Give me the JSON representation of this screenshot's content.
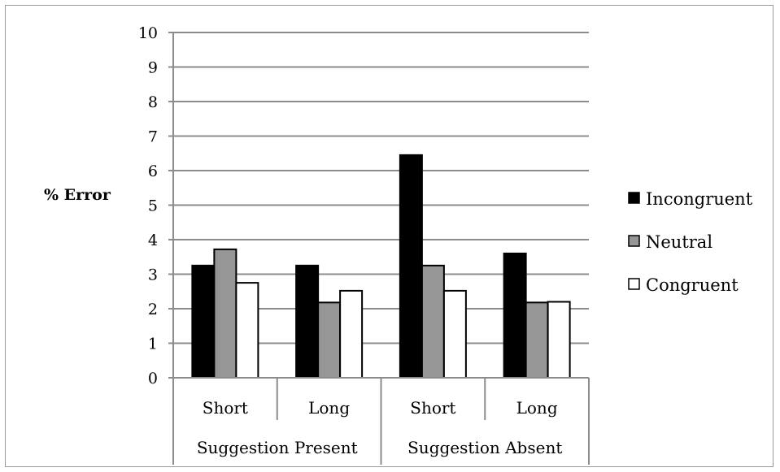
{
  "chart_data": {
    "type": "bar",
    "ylabel": "% Error",
    "ylim": [
      0,
      10
    ],
    "yticks": [
      "0",
      "1",
      "2",
      "3",
      "4",
      "5",
      "6",
      "7",
      "8",
      "9",
      "10"
    ],
    "grid": true,
    "legend_position": "right",
    "groups": [
      {
        "label": "Suggestion Present",
        "categories": [
          "Short",
          "Long"
        ]
      },
      {
        "label": "Suggestion Absent",
        "categories": [
          "Short",
          "Long"
        ]
      }
    ],
    "categories": [
      "Short",
      "Long",
      "Short",
      "Long"
    ],
    "series": [
      {
        "name": "Incongruent",
        "color": "#000000",
        "values": [
          3.25,
          3.25,
          6.45,
          3.6
        ]
      },
      {
        "name": "Neutral",
        "color": "#969696",
        "values": [
          3.72,
          2.18,
          3.25,
          2.18
        ]
      },
      {
        "name": "Congruent",
        "color": "#ffffff",
        "values": [
          2.75,
          2.52,
          2.52,
          2.2
        ]
      }
    ]
  }
}
